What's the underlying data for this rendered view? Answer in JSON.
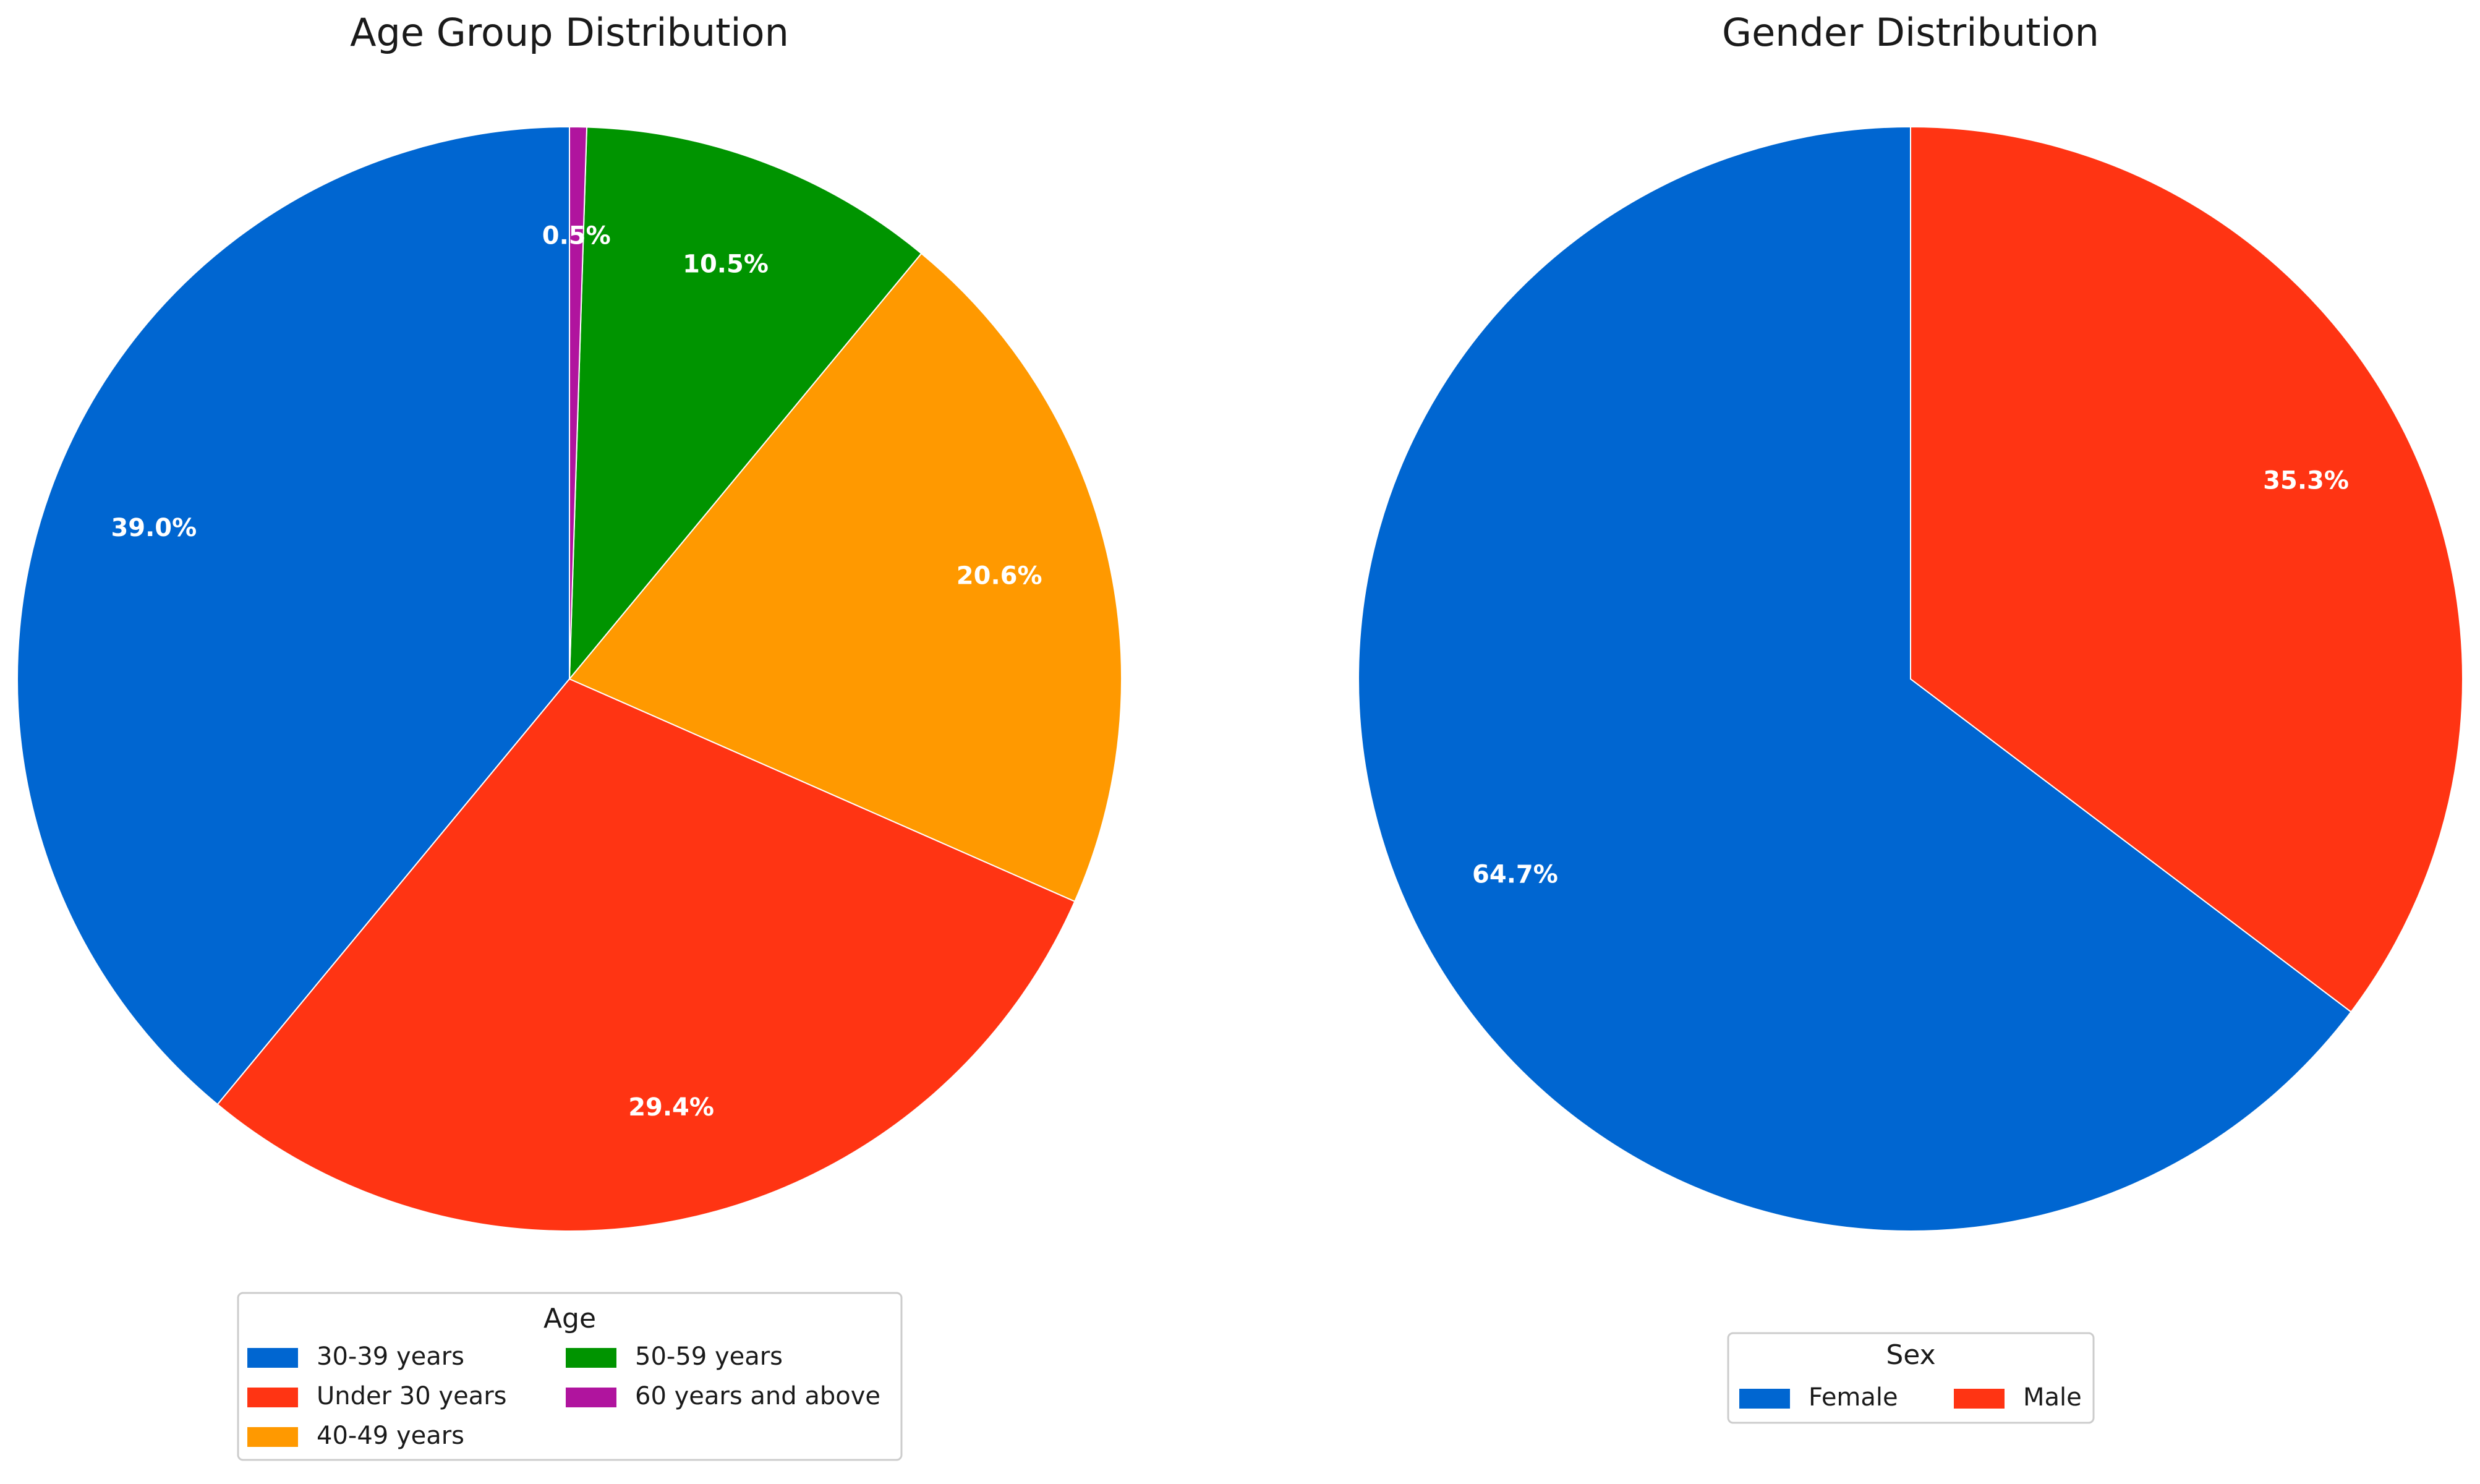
{
  "chart_data": [
    {
      "type": "pie",
      "title": "Age Group Distribution",
      "labels": [
        "30-39 years",
        "Under 30 years",
        "40-49 years",
        "50-59 years",
        "60 years and above"
      ],
      "values": [
        39.0,
        29.4,
        20.6,
        10.5,
        0.5
      ],
      "value_labels": [
        "39.0%",
        "29.4%",
        "20.6%",
        "10.5%",
        "0.5%"
      ],
      "colors": [
        "#0066d1",
        "#ff3413",
        "#ff9900",
        "#009400",
        "#b0149e"
      ],
      "start_angle_deg": 90,
      "direction": "counterclockwise",
      "legend": {
        "title": "Age",
        "placement": "bottom-center",
        "columns": 2,
        "entries": [
          "30-39 years",
          "Under 30 years",
          "40-49 years",
          "50-59 years",
          "60 years and above"
        ]
      }
    },
    {
      "type": "pie",
      "title": "Gender Distribution",
      "labels": [
        "Female",
        "Male"
      ],
      "values": [
        64.7,
        35.3
      ],
      "value_labels": [
        "64.7%",
        "35.3%"
      ],
      "colors": [
        "#0066d1",
        "#ff3413"
      ],
      "start_angle_deg": 90,
      "direction": "counterclockwise",
      "legend": {
        "title": "Sex",
        "placement": "bottom-center",
        "columns": 2,
        "entries": [
          "Female",
          "Male"
        ]
      }
    }
  ]
}
